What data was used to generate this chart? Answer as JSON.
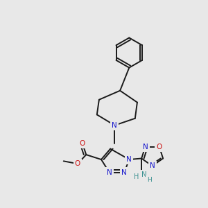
{
  "bg": "#e8e8e8",
  "C": "#1a1a1a",
  "N": "#1414cc",
  "O": "#cc1414",
  "NH2": "#3a9090",
  "lw": 1.4,
  "lw2": 1.4,
  "fs": 7.5,
  "dbl": 0.013
}
